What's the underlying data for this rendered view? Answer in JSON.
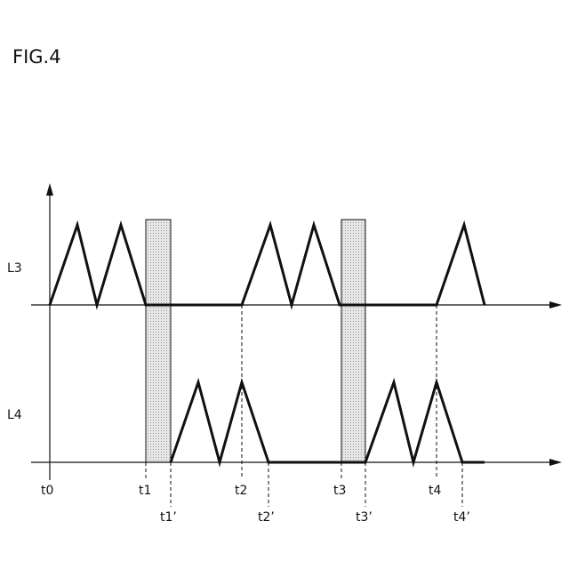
{
  "figure": {
    "title": "FIG.4"
  },
  "signals": [
    {
      "label": "L3"
    },
    {
      "label": "L4"
    }
  ],
  "time_labels": {
    "t0": "t0",
    "t1": "t1",
    "t1p": "t1’",
    "t2": "t2",
    "t2p": "t2’",
    "t3": "t3",
    "t3p": "t3’",
    "t4": "t4",
    "t4p": "t4’"
  },
  "colors": {
    "line": "#111111",
    "shade": "#dcdcdc"
  }
}
